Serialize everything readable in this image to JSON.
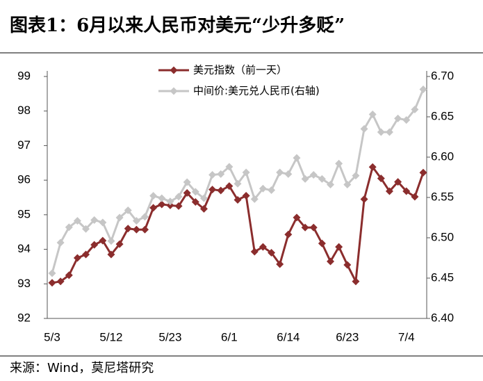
{
  "chart_data": {
    "type": "line",
    "title": "图表1：6月以来人民币对美元“少升多贬”",
    "source": "来源：Wind，莫尼塔研究",
    "categories": [
      "5/3",
      null,
      null,
      null,
      null,
      null,
      null,
      "5/12",
      null,
      null,
      null,
      null,
      null,
      null,
      "5/23",
      null,
      null,
      null,
      null,
      null,
      null,
      "6/1",
      null,
      null,
      null,
      null,
      null,
      null,
      "6/14",
      null,
      null,
      null,
      null,
      null,
      null,
      "6/23",
      null,
      null,
      null,
      null,
      null,
      null,
      "7/4",
      null,
      null
    ],
    "series": [
      {
        "name": "美元指数（前一天）",
        "color": "#8b2d2d",
        "axis": "y",
        "values": [
          93.03,
          93.07,
          93.25,
          93.75,
          93.85,
          94.13,
          94.25,
          93.85,
          94.15,
          94.6,
          94.57,
          94.57,
          95.2,
          95.3,
          95.27,
          95.25,
          95.63,
          95.37,
          95.17,
          95.73,
          95.7,
          95.83,
          95.43,
          95.55,
          93.93,
          94.07,
          93.9,
          93.57,
          94.43,
          94.92,
          94.63,
          94.63,
          94.17,
          93.65,
          94.07,
          93.55,
          93.07,
          95.45,
          96.38,
          96.05,
          95.68,
          95.95,
          95.68,
          95.52,
          96.22
        ]
      },
      {
        "name": "中间价:美元兑人民币(右轴)",
        "color": "#c6c6c6",
        "axis": "y2",
        "values": [
          6.456,
          6.494,
          6.513,
          6.521,
          6.511,
          6.522,
          6.519,
          6.496,
          6.525,
          6.534,
          6.521,
          6.526,
          6.552,
          6.549,
          6.545,
          6.551,
          6.569,
          6.557,
          6.549,
          6.578,
          6.579,
          6.588,
          6.567,
          6.581,
          6.548,
          6.561,
          6.559,
          6.581,
          6.579,
          6.599,
          6.573,
          6.578,
          6.573,
          6.566,
          6.592,
          6.566,
          6.577,
          6.635,
          6.653,
          6.631,
          6.631,
          6.648,
          6.646,
          6.659,
          6.684
        ]
      }
    ],
    "ylim": [
      92,
      99
    ],
    "yticks": [
      92,
      93,
      94,
      95,
      96,
      97,
      98,
      99
    ],
    "y2lim": [
      6.4,
      6.7
    ],
    "y2ticks": [
      {
        "value": 6.4,
        "label": "6.40"
      },
      6.45,
      {
        "value": 6.5,
        "label": "6.50"
      },
      6.55,
      {
        "value": 6.6,
        "label": "6.60"
      },
      6.65,
      {
        "value": 6.7,
        "label": "6.70"
      }
    ],
    "grid": false,
    "legend": "top"
  }
}
